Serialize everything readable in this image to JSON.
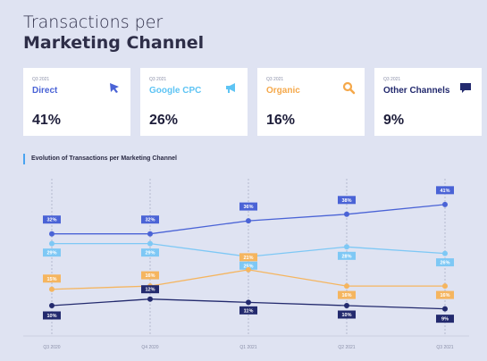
{
  "title": {
    "line1": "Transactions per",
    "line2": "Marketing Channel"
  },
  "cards": [
    {
      "period": "Q3 2021",
      "name": "Direct",
      "value": "41%",
      "color": "#4a63d6",
      "icon": "cursor-arrow-icon"
    },
    {
      "period": "Q3 2021",
      "name": "Google CPC",
      "value": "26%",
      "color": "#5ec4f4",
      "icon": "megaphone-icon"
    },
    {
      "period": "Q3 2021",
      "name": "Organic",
      "value": "16%",
      "color": "#f5a84a",
      "icon": "magnifier-icon"
    },
    {
      "period": "Q3 2021",
      "name": "Other Channels",
      "value": "9%",
      "color": "#232a6e",
      "icon": "chat-bubble-icon"
    }
  ],
  "section_title": "Evolution of Transactions per Marketing Channel",
  "chart_data": {
    "type": "line",
    "x": [
      "Q3 2020",
      "Q4 2020",
      "Q1 2021",
      "Q2 2021",
      "Q3 2021"
    ],
    "series": [
      {
        "name": "Direct",
        "color": "#4a63d6",
        "values": [
          32,
          32,
          36,
          38,
          41
        ],
        "labels": [
          "32%",
          "32%",
          "36%",
          "38%",
          "41%"
        ],
        "label_pos": "above"
      },
      {
        "name": "Google CPC",
        "color": "#7ec8f5",
        "values": [
          29,
          29,
          25,
          28,
          26
        ],
        "labels": [
          "29%",
          "29%",
          "25%",
          "28%",
          "26%"
        ],
        "label_pos": "below"
      },
      {
        "name": "Organic",
        "color": "#f5b55f",
        "values": [
          15,
          16,
          21,
          16,
          16
        ],
        "labels": [
          "15%",
          "16%",
          "21%",
          "16%",
          "16%"
        ],
        "label_pos": "mixed"
      },
      {
        "name": "Other Channels",
        "color": "#232a6e",
        "values": [
          10,
          12,
          11,
          10,
          9
        ],
        "labels": [
          "10%",
          "12%",
          "11%",
          "10%",
          "9%"
        ],
        "label_pos": "below"
      }
    ],
    "grid": "vertical-dashed",
    "title": "Evolution of Transactions per Marketing Channel"
  }
}
